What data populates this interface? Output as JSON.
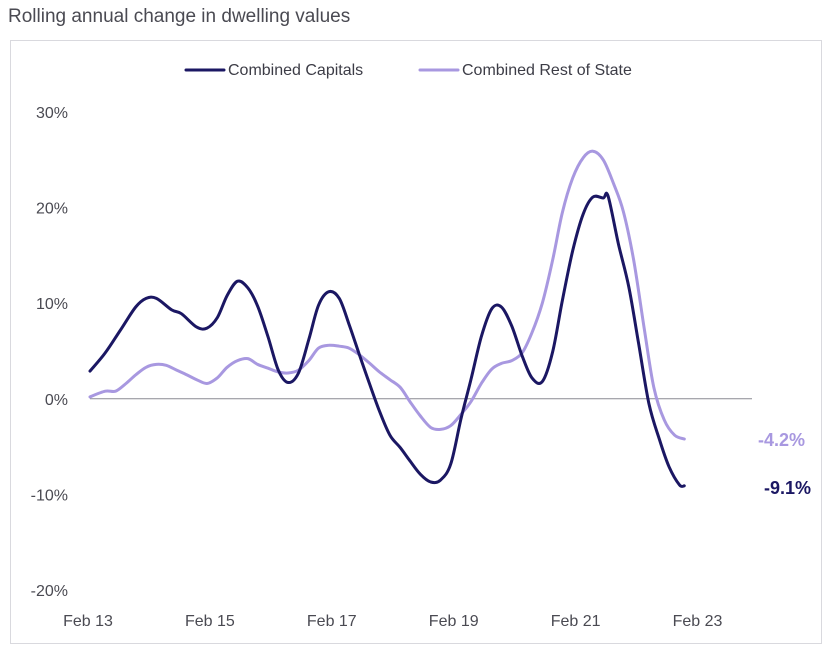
{
  "chart_data": {
    "type": "line",
    "title": "Rolling annual change in dwelling values",
    "xlabel": "",
    "ylabel": "",
    "ylim": [
      -20,
      30
    ],
    "xlim": [
      2013.08,
      2023.17
    ],
    "y_ticks": [
      "30%",
      "20%",
      "10%",
      "0%",
      "-10%",
      "-20%"
    ],
    "y_tick_values": [
      30,
      20,
      10,
      0,
      -10,
      -20
    ],
    "x_ticks": [
      "Feb 13",
      "Feb 15",
      "Feb 17",
      "Feb 19",
      "Feb 21",
      "Feb 23"
    ],
    "x_tick_values": [
      2013.08,
      2015.08,
      2017.08,
      2019.08,
      2021.08,
      2023.08
    ],
    "legend_position": "top-center",
    "grid": false,
    "series": [
      {
        "name": "Combined Capitals",
        "color": "#1b1763",
        "end_label": "-9.1%",
        "points": [
          [
            2013.08,
            2.9
          ],
          [
            2013.33,
            4.8
          ],
          [
            2013.58,
            7.2
          ],
          [
            2013.83,
            9.6
          ],
          [
            2014.0,
            10.5
          ],
          [
            2014.17,
            10.5
          ],
          [
            2014.42,
            9.3
          ],
          [
            2014.58,
            8.9
          ],
          [
            2014.83,
            7.5
          ],
          [
            2015.0,
            7.4
          ],
          [
            2015.17,
            8.5
          ],
          [
            2015.33,
            10.8
          ],
          [
            2015.5,
            12.3
          ],
          [
            2015.67,
            11.6
          ],
          [
            2015.83,
            9.7
          ],
          [
            2016.0,
            6.5
          ],
          [
            2016.17,
            3.0
          ],
          [
            2016.33,
            1.7
          ],
          [
            2016.5,
            2.7
          ],
          [
            2016.67,
            6.2
          ],
          [
            2016.83,
            9.8
          ],
          [
            2017.0,
            11.2
          ],
          [
            2017.17,
            10.5
          ],
          [
            2017.33,
            7.8
          ],
          [
            2017.5,
            4.6
          ],
          [
            2017.67,
            1.5
          ],
          [
            2017.83,
            -1.3
          ],
          [
            2018.0,
            -3.8
          ],
          [
            2018.17,
            -5.1
          ],
          [
            2018.33,
            -6.5
          ],
          [
            2018.5,
            -7.9
          ],
          [
            2018.67,
            -8.7
          ],
          [
            2018.83,
            -8.5
          ],
          [
            2019.0,
            -6.8
          ],
          [
            2019.17,
            -2.0
          ],
          [
            2019.33,
            2.0
          ],
          [
            2019.5,
            6.5
          ],
          [
            2019.67,
            9.4
          ],
          [
            2019.83,
            9.6
          ],
          [
            2020.0,
            7.6
          ],
          [
            2020.17,
            4.5
          ],
          [
            2020.33,
            2.2
          ],
          [
            2020.5,
            1.8
          ],
          [
            2020.67,
            4.9
          ],
          [
            2020.83,
            10.3
          ],
          [
            2021.0,
            15.5
          ],
          [
            2021.17,
            19.3
          ],
          [
            2021.33,
            21.1
          ],
          [
            2021.5,
            21.0
          ],
          [
            2021.58,
            21.2
          ],
          [
            2021.75,
            16.2
          ],
          [
            2021.92,
            11.7
          ],
          [
            2022.08,
            5.8
          ],
          [
            2022.25,
            -0.5
          ],
          [
            2022.42,
            -4.2
          ],
          [
            2022.58,
            -7.1
          ],
          [
            2022.75,
            -9.0
          ],
          [
            2022.83,
            -9.1
          ]
        ]
      },
      {
        "name": "Combined Rest of State",
        "color": "#a898e0",
        "end_label": "-4.2%",
        "points": [
          [
            2013.08,
            0.2
          ],
          [
            2013.33,
            0.8
          ],
          [
            2013.5,
            0.8
          ],
          [
            2013.67,
            1.6
          ],
          [
            2013.83,
            2.5
          ],
          [
            2014.0,
            3.3
          ],
          [
            2014.17,
            3.6
          ],
          [
            2014.33,
            3.5
          ],
          [
            2014.5,
            3.0
          ],
          [
            2014.67,
            2.5
          ],
          [
            2014.83,
            2.0
          ],
          [
            2015.0,
            1.6
          ],
          [
            2015.17,
            2.2
          ],
          [
            2015.33,
            3.3
          ],
          [
            2015.5,
            4.0
          ],
          [
            2015.67,
            4.2
          ],
          [
            2015.83,
            3.6
          ],
          [
            2016.0,
            3.2
          ],
          [
            2016.17,
            2.8
          ],
          [
            2016.33,
            2.7
          ],
          [
            2016.5,
            3.0
          ],
          [
            2016.67,
            4.0
          ],
          [
            2016.83,
            5.3
          ],
          [
            2017.0,
            5.6
          ],
          [
            2017.17,
            5.5
          ],
          [
            2017.33,
            5.3
          ],
          [
            2017.5,
            4.6
          ],
          [
            2017.67,
            3.7
          ],
          [
            2017.83,
            2.8
          ],
          [
            2018.0,
            2.0
          ],
          [
            2018.17,
            1.2
          ],
          [
            2018.33,
            -0.3
          ],
          [
            2018.5,
            -1.8
          ],
          [
            2018.67,
            -3.0
          ],
          [
            2018.83,
            -3.2
          ],
          [
            2019.0,
            -2.8
          ],
          [
            2019.17,
            -1.6
          ],
          [
            2019.33,
            -0.3
          ],
          [
            2019.5,
            1.6
          ],
          [
            2019.67,
            3.1
          ],
          [
            2019.83,
            3.7
          ],
          [
            2020.0,
            4.0
          ],
          [
            2020.17,
            4.8
          ],
          [
            2020.33,
            6.9
          ],
          [
            2020.5,
            10.0
          ],
          [
            2020.67,
            14.5
          ],
          [
            2020.83,
            19.5
          ],
          [
            2021.0,
            23.1
          ],
          [
            2021.17,
            25.2
          ],
          [
            2021.33,
            25.9
          ],
          [
            2021.5,
            25.0
          ],
          [
            2021.67,
            22.5
          ],
          [
            2021.83,
            19.6
          ],
          [
            2022.0,
            14.5
          ],
          [
            2022.17,
            7.5
          ],
          [
            2022.33,
            1.2
          ],
          [
            2022.5,
            -2.2
          ],
          [
            2022.67,
            -3.8
          ],
          [
            2022.83,
            -4.2
          ]
        ]
      }
    ]
  }
}
